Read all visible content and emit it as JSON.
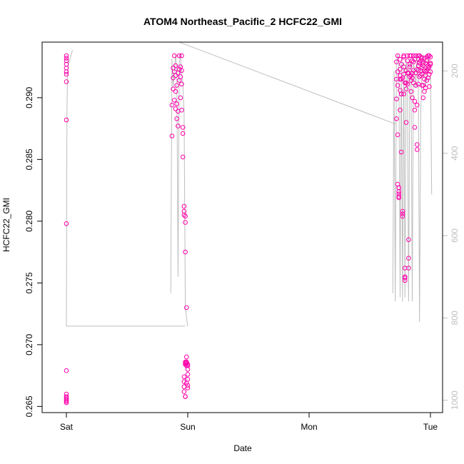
{
  "chart_data": {
    "type": "scatter",
    "title": "ATOM4 Northeast_Pacific_2 HCFC22_GMI",
    "xlabel": "Date",
    "ylabel": "HCFC22_GMI",
    "x_ticks": [
      "Sat",
      "Sun",
      "Mon",
      "Tue"
    ],
    "x_range_days": [
      -0.2,
      3.1
    ],
    "ylim": [
      0.2645,
      0.2945
    ],
    "y_ticks": [
      0.265,
      0.27,
      0.275,
      0.28,
      0.285,
      0.29
    ],
    "y_tick_labels": [
      "0.265",
      "0.270",
      "0.275",
      "0.280",
      "0.285",
      "0.290"
    ],
    "y2_ticks": [
      200,
      400,
      600,
      800,
      1000
    ],
    "y2_tick_labels": [
      "200",
      "400",
      "600",
      "800",
      "1000"
    ],
    "y2_range": [
      1030,
      130
    ],
    "grid": false,
    "colors": {
      "points": "#ff00aa",
      "pressure_line": "#bebebe",
      "axis": "#000000",
      "secondary_axis": "#bebebe"
    },
    "series": [
      {
        "kind": "points",
        "clusters": [
          {
            "x": [
              0.0,
              0.0,
              0.0,
              0.0,
              0.0,
              0.0,
              0.0,
              0.0,
              0.0,
              0.0,
              0.0,
              0.0,
              0.0,
              0.0,
              0.0,
              0.0,
              0.0,
              0.0
            ],
            "y": [
              0.2934,
              0.2932,
              0.293,
              0.2927,
              0.2924,
              0.2921,
              0.2919,
              0.2913,
              0.2882,
              0.2798,
              0.2679,
              0.266,
              0.2658,
              0.2657,
              0.2656,
              0.2655,
              0.2654,
              0.2653
            ]
          },
          {
            "x": [
              0.87,
              0.87,
              0.88,
              0.88,
              0.88,
              0.89,
              0.89,
              0.89,
              0.9,
              0.9,
              0.9,
              0.9,
              0.91,
              0.91,
              0.91,
              0.92,
              0.92,
              0.92,
              0.93,
              0.93,
              0.93,
              0.94,
              0.94,
              0.94,
              0.95,
              0.95,
              0.95,
              0.95,
              0.96,
              0.96,
              0.96,
              0.97,
              0.97,
              0.97,
              0.98,
              0.98,
              0.98,
              0.99,
              0.99,
              0.99,
              1.0,
              1.0,
              1.0,
              1.0,
              0.97,
              0.97,
              0.97,
              0.97,
              0.98,
              0.98,
              0.98,
              0.98,
              0.98,
              0.99,
              0.99,
              0.99,
              0.99,
              1.0,
              1.0,
              1.0
            ],
            "y": [
              0.2869,
              0.2894,
              0.2907,
              0.2916,
              0.2924,
              0.2898,
              0.2921,
              0.2934,
              0.2891,
              0.2905,
              0.2918,
              0.2926,
              0.2883,
              0.2895,
              0.291,
              0.2877,
              0.2889,
              0.292,
              0.2923,
              0.2914,
              0.2934,
              0.2925,
              0.2917,
              0.29,
              0.2934,
              0.2922,
              0.2911,
              0.289,
              0.2871,
              0.2876,
              0.2852,
              0.2812,
              0.2808,
              0.2805,
              0.2804,
              0.2799,
              0.2775,
              0.273,
              0.269,
              0.2686,
              0.2684,
              0.2683,
              0.268,
              0.2676,
              0.2674,
              0.267,
              0.2666,
              0.2662,
              0.2658,
              0.2658,
              0.2686,
              0.2685,
              0.2684,
              0.2683,
              0.2685,
              0.2686,
              0.2669,
              0.2672,
              0.2667,
              0.2665
            ]
          },
          {
            "x": [
              2.72,
              2.72,
              2.72,
              2.72,
              2.73,
              2.73,
              2.73,
              2.73,
              2.73,
              2.74,
              2.74,
              2.74,
              2.74,
              2.75,
              2.75,
              2.75,
              2.75,
              2.76,
              2.76,
              2.76,
              2.76,
              2.77,
              2.77,
              2.77,
              2.78,
              2.78,
              2.78,
              2.79,
              2.79,
              2.79,
              2.79,
              2.8,
              2.8,
              2.8,
              2.81,
              2.81,
              2.81,
              2.82,
              2.82,
              2.82,
              2.83,
              2.83,
              2.83,
              2.84,
              2.84,
              2.84,
              2.85,
              2.85,
              2.85,
              2.86,
              2.86,
              2.86,
              2.87,
              2.87,
              2.87,
              2.88,
              2.88,
              2.88,
              2.89,
              2.89,
              2.89,
              2.9,
              2.9,
              2.9,
              2.91,
              2.91,
              2.91,
              2.92,
              2.92,
              2.92,
              2.93,
              2.93,
              2.93,
              2.94,
              2.94,
              2.94,
              2.95,
              2.95,
              2.95,
              2.96,
              2.96,
              2.96,
              2.97,
              2.97,
              2.97,
              2.98,
              2.98,
              2.98,
              2.99,
              2.99,
              2.99,
              3.0,
              3.0,
              3.0,
              2.74,
              2.74,
              2.75,
              2.75,
              2.76,
              2.77,
              2.78,
              2.79,
              2.8,
              2.81,
              2.82,
              2.83,
              2.84,
              2.85,
              2.86,
              2.87,
              2.88,
              2.89,
              2.9,
              2.91,
              2.92,
              2.93,
              2.94,
              2.95,
              2.96,
              2.97,
              2.98,
              2.99,
              3.0,
              2.78
            ],
            "y": [
              0.2929,
              0.2915,
              0.2899,
              0.2883,
              0.2934,
              0.2921,
              0.291,
              0.287,
              0.283,
              0.2827,
              0.2824,
              0.282,
              0.2822,
              0.2931,
              0.2918,
              0.2906,
              0.289,
              0.2856,
              0.2927,
              0.2915,
              0.2903,
              0.2808,
              0.2806,
              0.2804,
              0.2934,
              0.2919,
              0.2903,
              0.2762,
              0.2755,
              0.2752,
              0.2754,
              0.2922,
              0.2912,
              0.288,
              0.2934,
              0.292,
              0.2911,
              0.277,
              0.2762,
              0.2785,
              0.2934,
              0.2925,
              0.2917,
              0.2934,
              0.2918,
              0.2905,
              0.293,
              0.2916,
              0.29,
              0.2934,
              0.2922,
              0.2912,
              0.2897,
              0.289,
              0.2876,
              0.2934,
              0.292,
              0.291,
              0.2862,
              0.2858,
              0.2894,
              0.2934,
              0.2922,
              0.2911,
              0.2934,
              0.2928,
              0.2917,
              0.2933,
              0.293,
              0.2918,
              0.2932,
              0.2919,
              0.291,
              0.291,
              0.2926,
              0.29,
              0.2922,
              0.2915,
              0.2905,
              0.2928,
              0.2918,
              0.2908,
              0.293,
              0.2922,
              0.2914,
              0.2934,
              0.2924,
              0.2916,
              0.2925,
              0.2919,
              0.2909,
              0.2933,
              0.2928,
              0.2921,
              0.2827,
              0.2819,
              0.2923,
              0.2915,
              0.2903,
              0.2916,
              0.2925,
              0.2912,
              0.2907,
              0.293,
              0.292,
              0.2927,
              0.2914,
              0.292,
              0.2929,
              0.2931,
              0.292,
              0.2923,
              0.2926,
              0.2929,
              0.2922,
              0.2924,
              0.2928,
              0.2932,
              0.2921,
              0.2933,
              0.2926,
              0.2934,
              0.2927,
              0.2933
            ]
          }
        ]
      },
      {
        "kind": "pressure_line",
        "axis": "right",
        "segments": [
          {
            "x": [
              0.0,
              0.005,
              0.01,
              0.02,
              0.03,
              0.04,
              0.05
            ],
            "p": [
              820,
              300,
              200,
              180,
              170,
              160,
              150
            ]
          },
          {
            "x": [
              0.0,
              0.98
            ],
            "p": [
              820,
              820
            ]
          },
          {
            "x": [
              0.86,
              0.87,
              0.88,
              0.89,
              0.9,
              0.91,
              0.92,
              0.93,
              0.94,
              0.95,
              0.96,
              0.97,
              0.98,
              0.99,
              1.0
            ],
            "p": [
              740,
              170,
              240,
              200,
              160,
              200,
              700,
              180,
              160,
              210,
              230,
              300,
              770,
              800,
              820
            ]
          },
          {
            "x": [
              0.93,
              2.72
            ],
            "p": [
              130,
              330
            ]
          },
          {
            "x": [
              2.69,
              2.7,
              2.71,
              2.72,
              2.73,
              2.74,
              2.75,
              2.76,
              2.77,
              2.78,
              2.79,
              2.8,
              2.81,
              2.82,
              2.83,
              2.84,
              2.85,
              2.86,
              2.87,
              2.88,
              2.89,
              2.9,
              2.91,
              2.92,
              2.93,
              2.94,
              2.95,
              2.96,
              2.97,
              2.98,
              2.99,
              3.0,
              3.01
            ],
            "p": [
              740,
              200,
              760,
              180,
              160,
              200,
              750,
              170,
              760,
              180,
              750,
              170,
              220,
              760,
              170,
              190,
              760,
              180,
              200,
              240,
              160,
              230,
              810,
              300,
              200,
              160,
              180,
              240,
              210,
              170,
              170,
              180,
              500
            ]
          }
        ]
      }
    ]
  }
}
